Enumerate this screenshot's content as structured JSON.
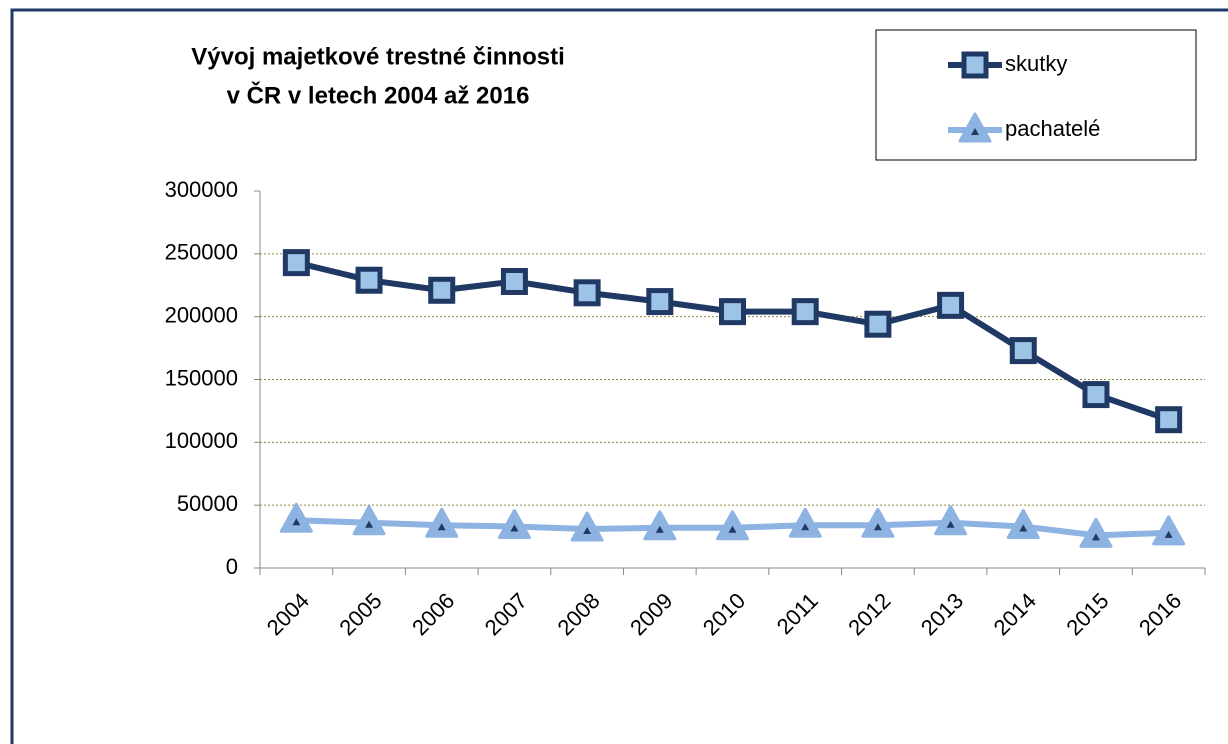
{
  "chart_data": {
    "type": "line",
    "title": [
      "Vývoj majetkové trestné činnosti",
      "v ČR v letech 2004 až 2016"
    ],
    "categories": [
      "2004",
      "2005",
      "2006",
      "2007",
      "2008",
      "2009",
      "2010",
      "2011",
      "2012",
      "2013",
      "2014",
      "2015",
      "2016"
    ],
    "series": [
      {
        "name": "skutky",
        "color": "#1f3864",
        "marker": "square",
        "values": [
          243000,
          229000,
          221000,
          228000,
          219000,
          212000,
          204000,
          204000,
          194000,
          209000,
          173000,
          138000,
          118000
        ]
      },
      {
        "name": "pachatelé",
        "color": "#8db3e2",
        "marker": "triangle",
        "values": [
          38000,
          36000,
          34000,
          33000,
          31000,
          32000,
          32000,
          34000,
          34000,
          36000,
          33000,
          26000,
          28000
        ]
      }
    ],
    "ylim": [
      0,
      300000
    ],
    "yticks": [
      0,
      50000,
      100000,
      150000,
      200000,
      250000,
      300000
    ],
    "grid": true,
    "legend": "top-right"
  }
}
